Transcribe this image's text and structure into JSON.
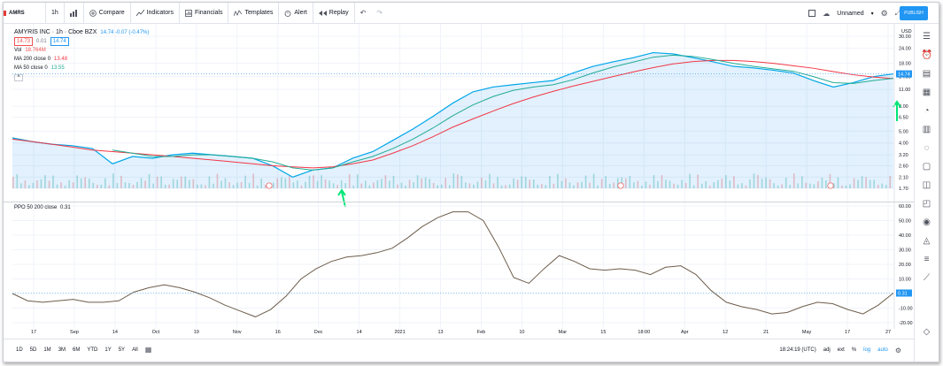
{
  "toolbar": {
    "symbol": "AMRS",
    "interval": "1h",
    "compare": "Compare",
    "indicators": "Indicators",
    "financials": "Financials",
    "templates": "Templates",
    "alert": "Alert",
    "replay": "Replay",
    "layout_name": "Unnamed",
    "publish": "PUBLISH"
  },
  "legend": {
    "symbol_line": "AMYRIS INC · 1h · Cboe BZX",
    "price_change": "14.74 -0.07 (-0.47%)",
    "bid": "14.73",
    "spread": "0.01",
    "ask": "14.74",
    "vol_label": "Vol",
    "vol_value": "18.764M",
    "ma200_label": "MA 200 close 0",
    "ma200_value": "13.48",
    "ma50_label": "MA 50 close 0",
    "ma50_value": "13.55",
    "collapse": "^"
  },
  "ppo_legend": {
    "label": "PPO 50 200 close",
    "value": "0.31"
  },
  "bottom": {
    "ranges": [
      "1D",
      "5D",
      "1M",
      "3M",
      "6M",
      "YTD",
      "1Y",
      "5Y",
      "All"
    ],
    "time": "18:24:19 (UTC)",
    "adj": "adj",
    "ext": "ext",
    "pct": "%",
    "log": "log",
    "auto": "auto"
  },
  "chart_data": [
    {
      "type": "line",
      "title": "AMYRIS INC · 1h · Cboe BZX",
      "scale": "log",
      "y_ticks": [
        1.7,
        2.1,
        2.6,
        3.2,
        4.0,
        5.0,
        6.5,
        8.0,
        11.0,
        14.0,
        18.0,
        24.0,
        30.0
      ],
      "y_unit": "USD",
      "last_price": 14.74,
      "x_ticks": [
        "17",
        "Sep",
        "14",
        "Oct",
        "19",
        "Nov",
        "16",
        "Dec",
        "14",
        "2021",
        "13",
        "Feb",
        "10",
        "Mar",
        "15",
        "18:00",
        "Apr",
        "12",
        "21",
        "May",
        "17",
        "27"
      ],
      "series": [
        {
          "name": "AMYRIS INC",
          "color": "#00a6e8",
          "values": [
            4.4,
            4.1,
            3.9,
            3.8,
            3.6,
            2.7,
            3.1,
            3.0,
            3.2,
            3.3,
            3.2,
            3.1,
            3.0,
            2.6,
            2.1,
            2.4,
            2.5,
            3.0,
            3.4,
            4.2,
            5.2,
            6.6,
            8.5,
            10.5,
            11.5,
            12.0,
            12.5,
            13.0,
            15.0,
            17.0,
            18.5,
            20.0,
            22.0,
            21.5,
            20.0,
            18.5,
            17.0,
            16.5,
            15.8,
            15.0,
            13.0,
            11.5,
            12.5,
            14.0,
            14.74
          ]
        },
        {
          "name": "MA 200 close 0",
          "color": "#f23645",
          "values": [
            4.3,
            4.1,
            3.9,
            3.7,
            3.5,
            3.4,
            3.3,
            3.2,
            3.1,
            3.0,
            2.9,
            2.8,
            2.7,
            2.6,
            2.55,
            2.5,
            2.55,
            2.7,
            2.9,
            3.3,
            3.8,
            4.5,
            5.4,
            6.3,
            7.3,
            8.4,
            9.5,
            10.6,
            11.7,
            12.8,
            14.0,
            15.3,
            16.6,
            17.8,
            18.6,
            19.0,
            19.0,
            18.6,
            18.0,
            17.2,
            16.4,
            15.4,
            14.5,
            13.9,
            13.48
          ]
        },
        {
          "name": "MA 50 close 0",
          "color": "#22ab94",
          "values": [
            null,
            null,
            null,
            null,
            null,
            3.5,
            3.3,
            3.1,
            3.1,
            3.2,
            3.2,
            3.1,
            3.0,
            2.8,
            2.5,
            2.4,
            2.5,
            2.8,
            3.1,
            3.6,
            4.3,
            5.3,
            6.7,
            8.2,
            9.6,
            10.8,
            11.5,
            12.0,
            13.2,
            15.0,
            16.8,
            18.4,
            20.2,
            21.0,
            20.5,
            19.3,
            18.0,
            17.0,
            16.2,
            15.5,
            14.0,
            12.5,
            12.3,
            13.0,
            13.55
          ]
        }
      ]
    },
    {
      "type": "line",
      "title": "PPO 50 200 close",
      "y_ticks": [
        60.0,
        50.0,
        40.0,
        30.0,
        20.0,
        10.0,
        0.0,
        -10.0,
        -20.0
      ],
      "last_value": 0.31,
      "series": [
        {
          "name": "PPO 50 200 close",
          "color": "#6d5d4b",
          "values": [
            0,
            -5,
            -6,
            -5,
            -4,
            -6,
            -6,
            -5,
            1,
            4,
            6,
            4,
            1,
            -3,
            -8,
            -12,
            -16,
            -11,
            -2,
            10,
            17,
            22,
            25,
            26,
            28,
            31,
            38,
            46,
            52,
            56,
            56,
            50,
            32,
            11,
            7,
            17,
            26,
            22,
            17,
            16,
            17,
            16,
            13,
            18,
            19,
            13,
            2,
            -6,
            -9,
            -11,
            -14,
            -13,
            -9,
            -6,
            -7,
            -11,
            -14,
            -8,
            0.31
          ]
        }
      ]
    }
  ]
}
